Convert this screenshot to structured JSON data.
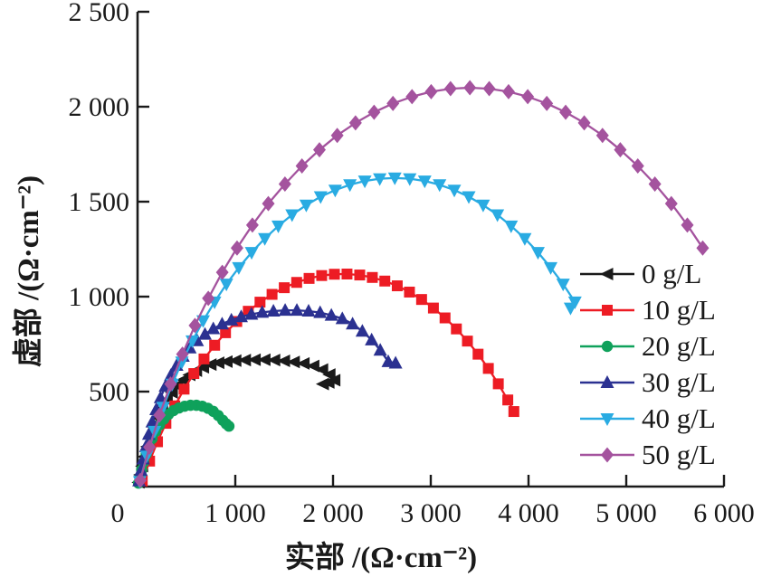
{
  "figure": {
    "background": "#ffffff",
    "axis_color": "#1a1a1a",
    "text_color": "#1a1a1a"
  },
  "chart_data": {
    "type": "line",
    "subtype": "nyquist-impedance-scatter-line",
    "title": "",
    "xlabel": "实部 /(Ω·cm⁻²)",
    "ylabel": "虚部 /(Ω·cm⁻²)",
    "xlim": [
      0,
      6000
    ],
    "ylim": [
      0,
      2500
    ],
    "grid": false,
    "legend_position": "inside-right-middle",
    "origin_label": "0",
    "xticks": [
      1000,
      2000,
      3000,
      4000,
      5000,
      6000
    ],
    "xtick_labels": [
      "1 000",
      "2 000",
      "3 000",
      "4 000",
      "5 000",
      "6 000"
    ],
    "yticks": [
      500,
      1000,
      1500,
      2000,
      2500
    ],
    "ytick_labels": [
      "500",
      "1 000",
      "1 500",
      "2 000",
      "2 500"
    ],
    "series": [
      {
        "name": "0 g/L",
        "color": "#1a1a1a",
        "marker": "triangle-left",
        "points": [
          [
            12,
            22
          ],
          [
            28,
            62
          ],
          [
            48,
            108
          ],
          [
            72,
            158
          ],
          [
            100,
            210
          ],
          [
            132,
            262
          ],
          [
            168,
            314
          ],
          [
            208,
            364
          ],
          [
            252,
            412
          ],
          [
            300,
            456
          ],
          [
            352,
            496
          ],
          [
            408,
            532
          ],
          [
            468,
            562
          ],
          [
            532,
            588
          ],
          [
            600,
            610
          ],
          [
            672,
            628
          ],
          [
            748,
            642
          ],
          [
            828,
            652
          ],
          [
            912,
            658
          ],
          [
            1002,
            663
          ],
          [
            1100,
            666
          ],
          [
            1200,
            668
          ],
          [
            1300,
            668
          ],
          [
            1400,
            666
          ],
          [
            1500,
            662
          ],
          [
            1600,
            656
          ],
          [
            1700,
            648
          ],
          [
            1800,
            635
          ],
          [
            1890,
            616
          ],
          [
            1965,
            590
          ],
          [
            2015,
            560
          ],
          [
            1955,
            548
          ],
          [
            1898,
            540
          ]
        ]
      },
      {
        "name": "10 g/L",
        "color": "#ed1c24",
        "marker": "square",
        "points": [
          [
            48,
            29
          ],
          [
            123,
            134
          ],
          [
            204,
            236
          ],
          [
            290,
            333
          ],
          [
            381,
            425
          ],
          [
            476,
            513
          ],
          [
            576,
            595
          ],
          [
            680,
            672
          ],
          [
            789,
            744
          ],
          [
            900,
            810
          ],
          [
            1015,
            869
          ],
          [
            1133,
            923
          ],
          [
            1253,
            971
          ],
          [
            1376,
            1012
          ],
          [
            1501,
            1047
          ],
          [
            1628,
            1075
          ],
          [
            1755,
            1096
          ],
          [
            1884,
            1111
          ],
          [
            2014,
            1118
          ],
          [
            2143,
            1119
          ],
          [
            2273,
            1114
          ],
          [
            2402,
            1101
          ],
          [
            2530,
            1082
          ],
          [
            2657,
            1057
          ],
          [
            2782,
            1024
          ],
          [
            2906,
            985
          ],
          [
            3027,
            940
          ],
          [
            3146,
            888
          ],
          [
            3262,
            830
          ],
          [
            3375,
            766
          ],
          [
            3484,
            697
          ],
          [
            3589,
            622
          ],
          [
            3691,
            541
          ],
          [
            3788,
            456
          ],
          [
            3850,
            395
          ]
        ]
      },
      {
        "name": "20 g/L",
        "color": "#0fa15b",
        "marker": "circle",
        "points": [
          [
            10,
            18
          ],
          [
            24,
            50
          ],
          [
            42,
            88
          ],
          [
            63,
            128
          ],
          [
            88,
            170
          ],
          [
            116,
            212
          ],
          [
            148,
            252
          ],
          [
            184,
            290
          ],
          [
            224,
            324
          ],
          [
            268,
            354
          ],
          [
            316,
            380
          ],
          [
            368,
            400
          ],
          [
            424,
            414
          ],
          [
            482,
            423
          ],
          [
            542,
            428
          ],
          [
            602,
            428
          ],
          [
            662,
            423
          ],
          [
            720,
            412
          ],
          [
            775,
            396
          ],
          [
            826,
            374
          ],
          [
            872,
            349
          ],
          [
            908,
            330
          ],
          [
            935,
            318
          ]
        ]
      },
      {
        "name": "30 g/L",
        "color": "#2b3191",
        "marker": "triangle-up",
        "points": [
          [
            15,
            30
          ],
          [
            35,
            85
          ],
          [
            58,
            145
          ],
          [
            85,
            210
          ],
          [
            115,
            275
          ],
          [
            150,
            340
          ],
          [
            190,
            405
          ],
          [
            235,
            468
          ],
          [
            285,
            528
          ],
          [
            340,
            585
          ],
          [
            400,
            638
          ],
          [
            465,
            686
          ],
          [
            535,
            730
          ],
          [
            610,
            768
          ],
          [
            690,
            802
          ],
          [
            775,
            831
          ],
          [
            865,
            856
          ],
          [
            960,
            877
          ],
          [
            1060,
            894
          ],
          [
            1165,
            907
          ],
          [
            1275,
            917
          ],
          [
            1390,
            924
          ],
          [
            1510,
            928
          ],
          [
            1630,
            928
          ],
          [
            1750,
            924
          ],
          [
            1868,
            916
          ],
          [
            1983,
            902
          ],
          [
            2095,
            884
          ],
          [
            2200,
            856
          ],
          [
            2300,
            818
          ],
          [
            2395,
            772
          ],
          [
            2483,
            718
          ],
          [
            2565,
            658
          ],
          [
            2640,
            650
          ]
        ]
      },
      {
        "name": "40 g/L",
        "color": "#29abe2",
        "marker": "triangle-down",
        "points": [
          [
            22,
            26
          ],
          [
            94,
            161
          ],
          [
            174,
            291
          ],
          [
            262,
            418
          ],
          [
            355,
            539
          ],
          [
            454,
            656
          ],
          [
            560,
            767
          ],
          [
            671,
            873
          ],
          [
            788,
            972
          ],
          [
            909,
            1066
          ],
          [
            1036,
            1153
          ],
          [
            1167,
            1233
          ],
          [
            1302,
            1306
          ],
          [
            1440,
            1372
          ],
          [
            1581,
            1431
          ],
          [
            1726,
            1482
          ],
          [
            1873,
            1526
          ],
          [
            2022,
            1561
          ],
          [
            2173,
            1589
          ],
          [
            2325,
            1609
          ],
          [
            2478,
            1621
          ],
          [
            2632,
            1625
          ],
          [
            2785,
            1621
          ],
          [
            2938,
            1609
          ],
          [
            3090,
            1589
          ],
          [
            3241,
            1561
          ],
          [
            3389,
            1526
          ],
          [
            3536,
            1482
          ],
          [
            3682,
            1431
          ],
          [
            3822,
            1372
          ],
          [
            3962,
            1306
          ],
          [
            4097,
            1233
          ],
          [
            4227,
            1153
          ],
          [
            4354,
            1066
          ],
          [
            4475,
            972
          ],
          [
            4430,
            940
          ]
        ]
      },
      {
        "name": "50 g/L",
        "color": "#a4539e",
        "marker": "diamond",
        "points": [
          [
            28,
            33
          ],
          [
            122,
            208
          ],
          [
            225,
            376
          ],
          [
            338,
            540
          ],
          [
            459,
            697
          ],
          [
            587,
            848
          ],
          [
            724,
            991
          ],
          [
            867,
            1128
          ],
          [
            1018,
            1256
          ],
          [
            1175,
            1377
          ],
          [
            1338,
            1490
          ],
          [
            1508,
            1593
          ],
          [
            1682,
            1688
          ],
          [
            1861,
            1773
          ],
          [
            2043,
            1849
          ],
          [
            2230,
            1915
          ],
          [
            2420,
            1971
          ],
          [
            2613,
            2017
          ],
          [
            2808,
            2053
          ],
          [
            3004,
            2079
          ],
          [
            3202,
            2095
          ],
          [
            3400,
            2100
          ],
          [
            3598,
            2095
          ],
          [
            3796,
            2079
          ],
          [
            3992,
            2053
          ],
          [
            4187,
            2017
          ],
          [
            4380,
            1971
          ],
          [
            4570,
            1915
          ],
          [
            4757,
            1849
          ],
          [
            4939,
            1773
          ],
          [
            5118,
            1688
          ],
          [
            5293,
            1593
          ],
          [
            5461,
            1490
          ],
          [
            5625,
            1377
          ],
          [
            5782,
            1256
          ]
        ]
      }
    ]
  }
}
